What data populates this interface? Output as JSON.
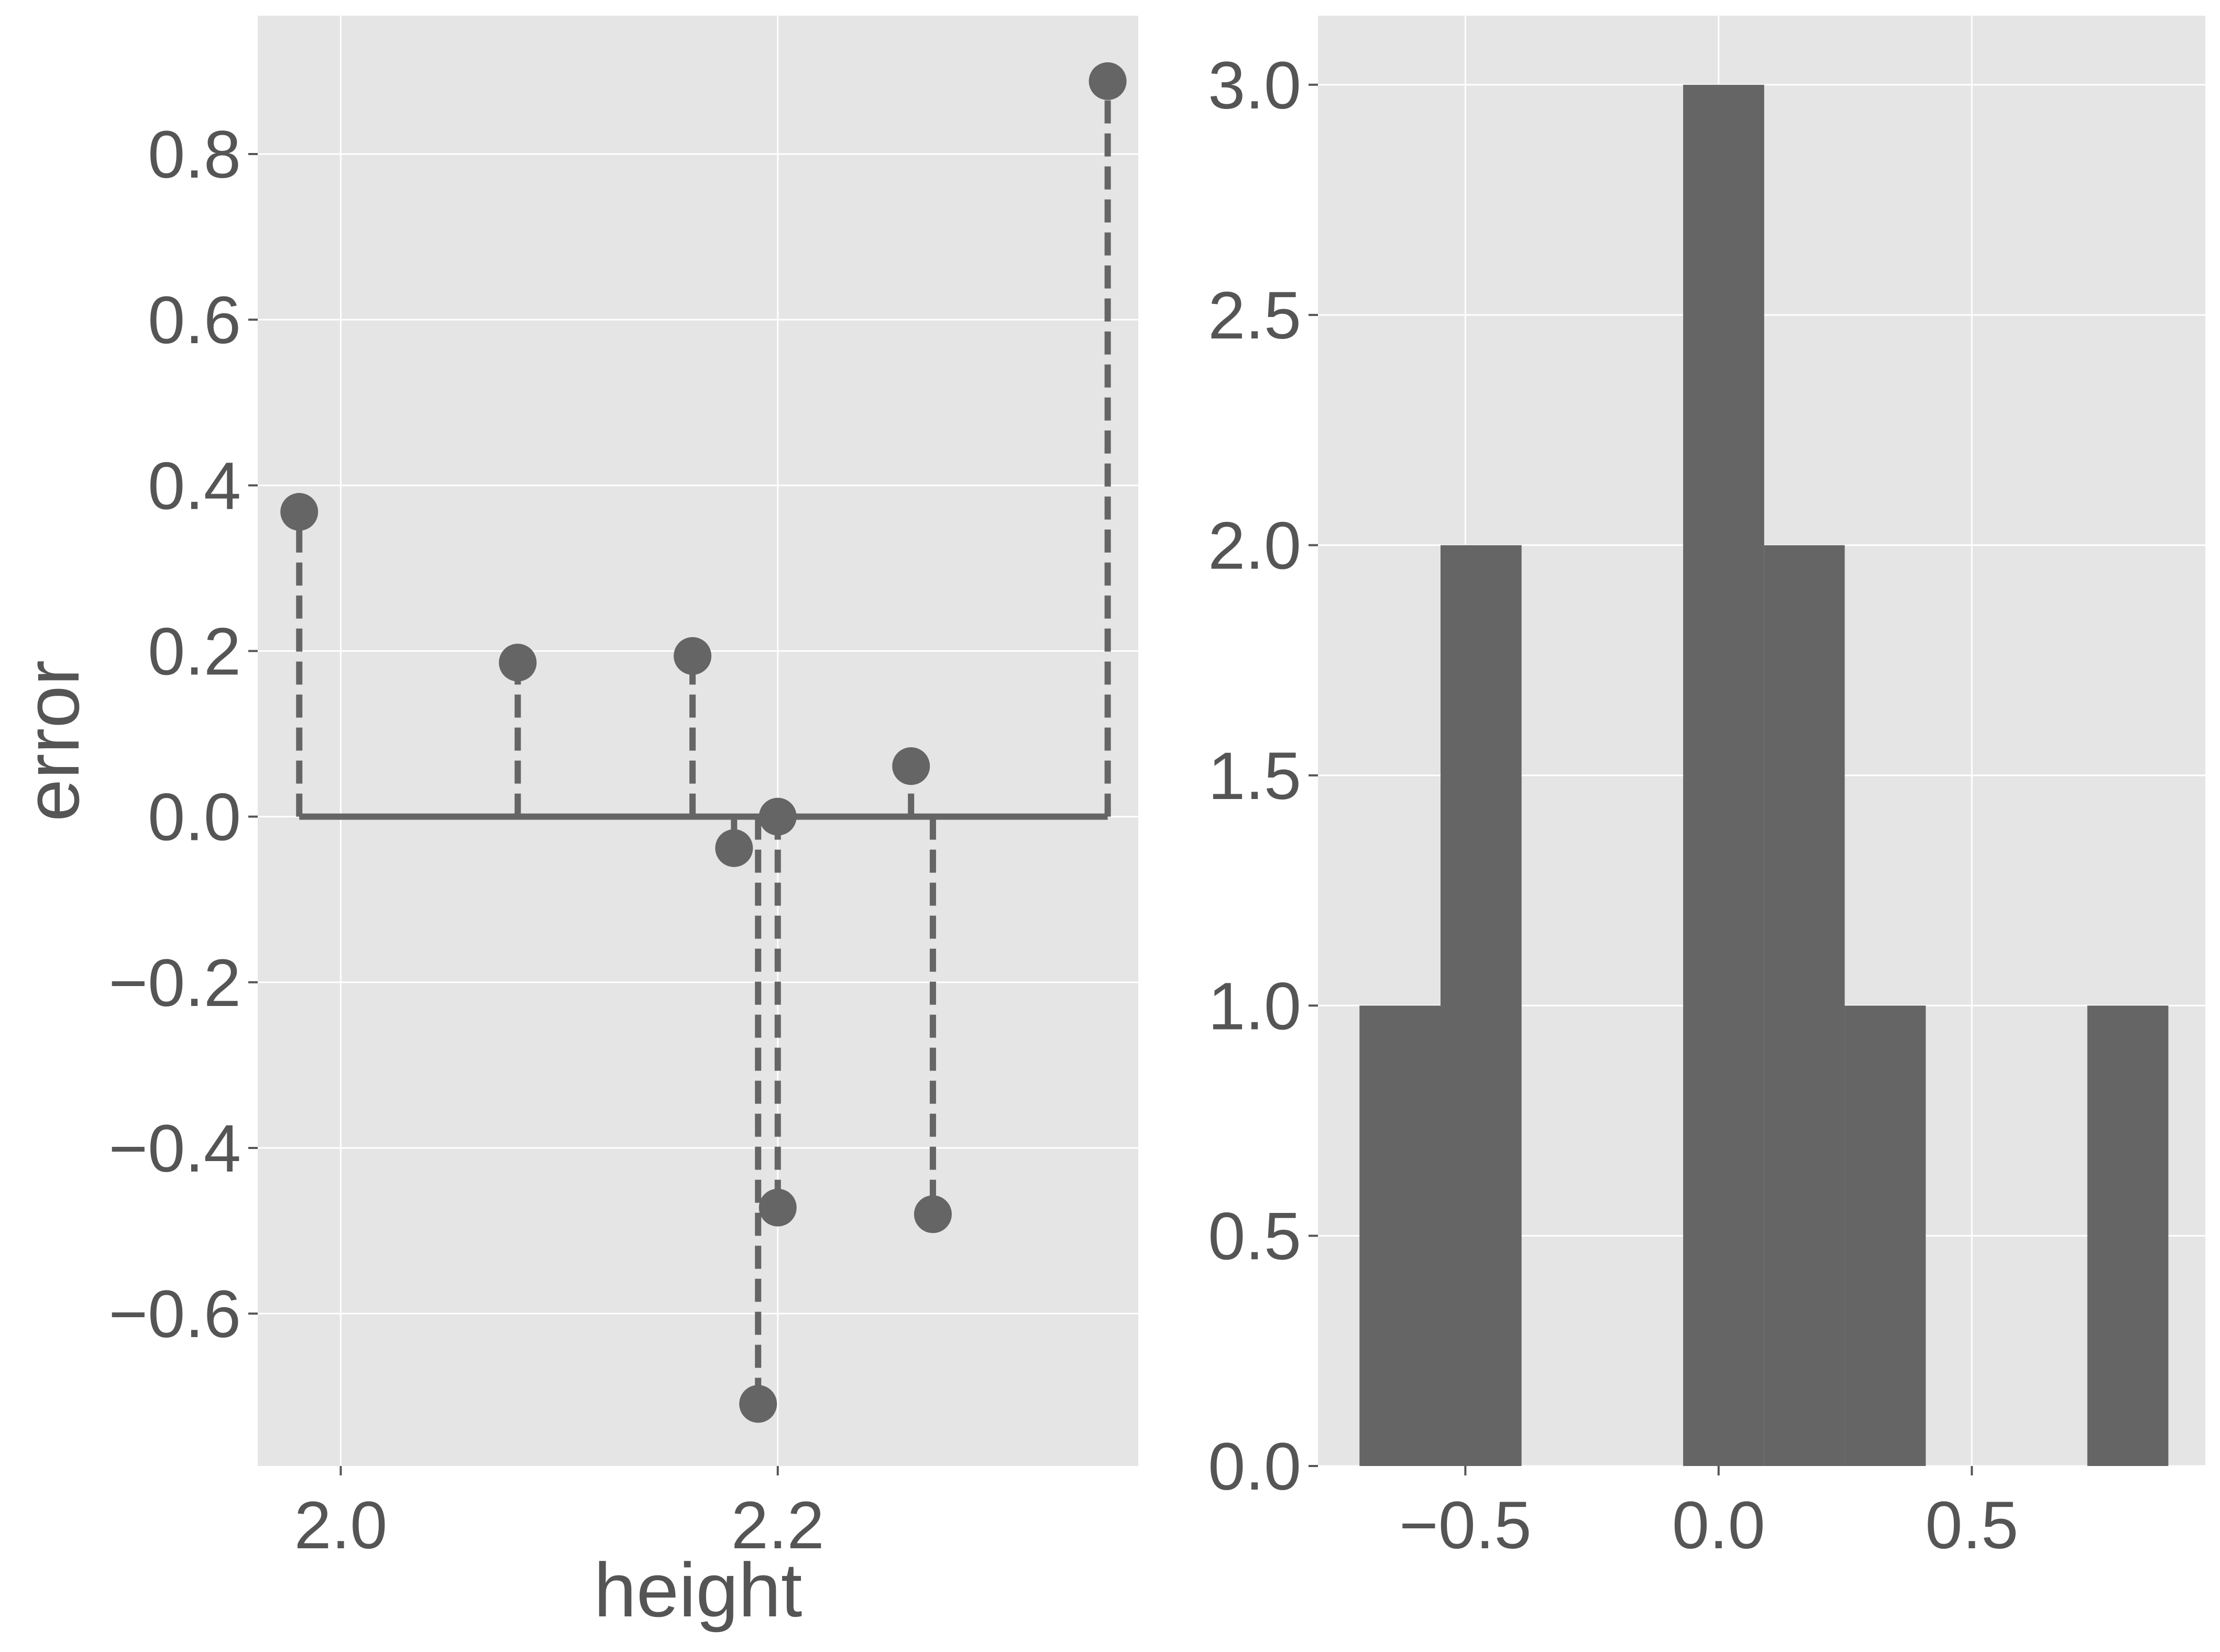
{
  "colors": {
    "panel_background": "#e5e5e5",
    "grid": "#ffffff",
    "mark": "#656565",
    "text": "#555555"
  },
  "chart_data": [
    {
      "type": "scatter",
      "style": "stem",
      "xlabel": "height",
      "ylabel": "error",
      "xlim": [
        1.962,
        2.365
      ],
      "ylim": [
        -0.784,
        0.967
      ],
      "xticks": [
        2.0,
        2.2
      ],
      "xtick_labels": [
        "2.0",
        "2.2"
      ],
      "yticks": [
        -0.6,
        -0.4,
        -0.2,
        0.0,
        0.2,
        0.4,
        0.6,
        0.8
      ],
      "ytick_labels": [
        "−0.6",
        "−0.4",
        "−0.2",
        "0.0",
        "0.2",
        "0.4",
        "0.6",
        "0.8"
      ],
      "grid": true,
      "baseline": 0.0,
      "points": [
        {
          "x": 1.981,
          "y": 0.368
        },
        {
          "x": 2.081,
          "y": 0.186
        },
        {
          "x": 2.161,
          "y": 0.194
        },
        {
          "x": 2.18,
          "y": -0.038
        },
        {
          "x": 2.191,
          "y": -0.709
        },
        {
          "x": 2.2,
          "y": -0.472
        },
        {
          "x": 2.2,
          "y": 0.0
        },
        {
          "x": 2.261,
          "y": 0.061
        },
        {
          "x": 2.271,
          "y": -0.48
        },
        {
          "x": 2.351,
          "y": 0.888
        }
      ]
    },
    {
      "type": "bar",
      "style": "histogram",
      "xlim": [
        -0.791,
        0.961
      ],
      "ylim": [
        0,
        3.15
      ],
      "xticks": [
        -0.5,
        0.0,
        0.5
      ],
      "xtick_labels": [
        "−0.5",
        "0.0",
        "0.5"
      ],
      "yticks": [
        0.0,
        0.5,
        1.0,
        1.5,
        2.0,
        2.5,
        3.0
      ],
      "ytick_labels": [
        "0.0",
        "0.5",
        "1.0",
        "1.5",
        "2.0",
        "2.5",
        "3.0"
      ],
      "grid": true,
      "bin_edges": [
        -0.709,
        -0.549,
        -0.389,
        -0.23,
        -0.07,
        0.09,
        0.249,
        0.409,
        0.569,
        0.728,
        0.888
      ],
      "values": [
        1,
        2,
        0,
        0,
        3,
        2,
        1,
        0,
        0,
        1
      ]
    }
  ]
}
